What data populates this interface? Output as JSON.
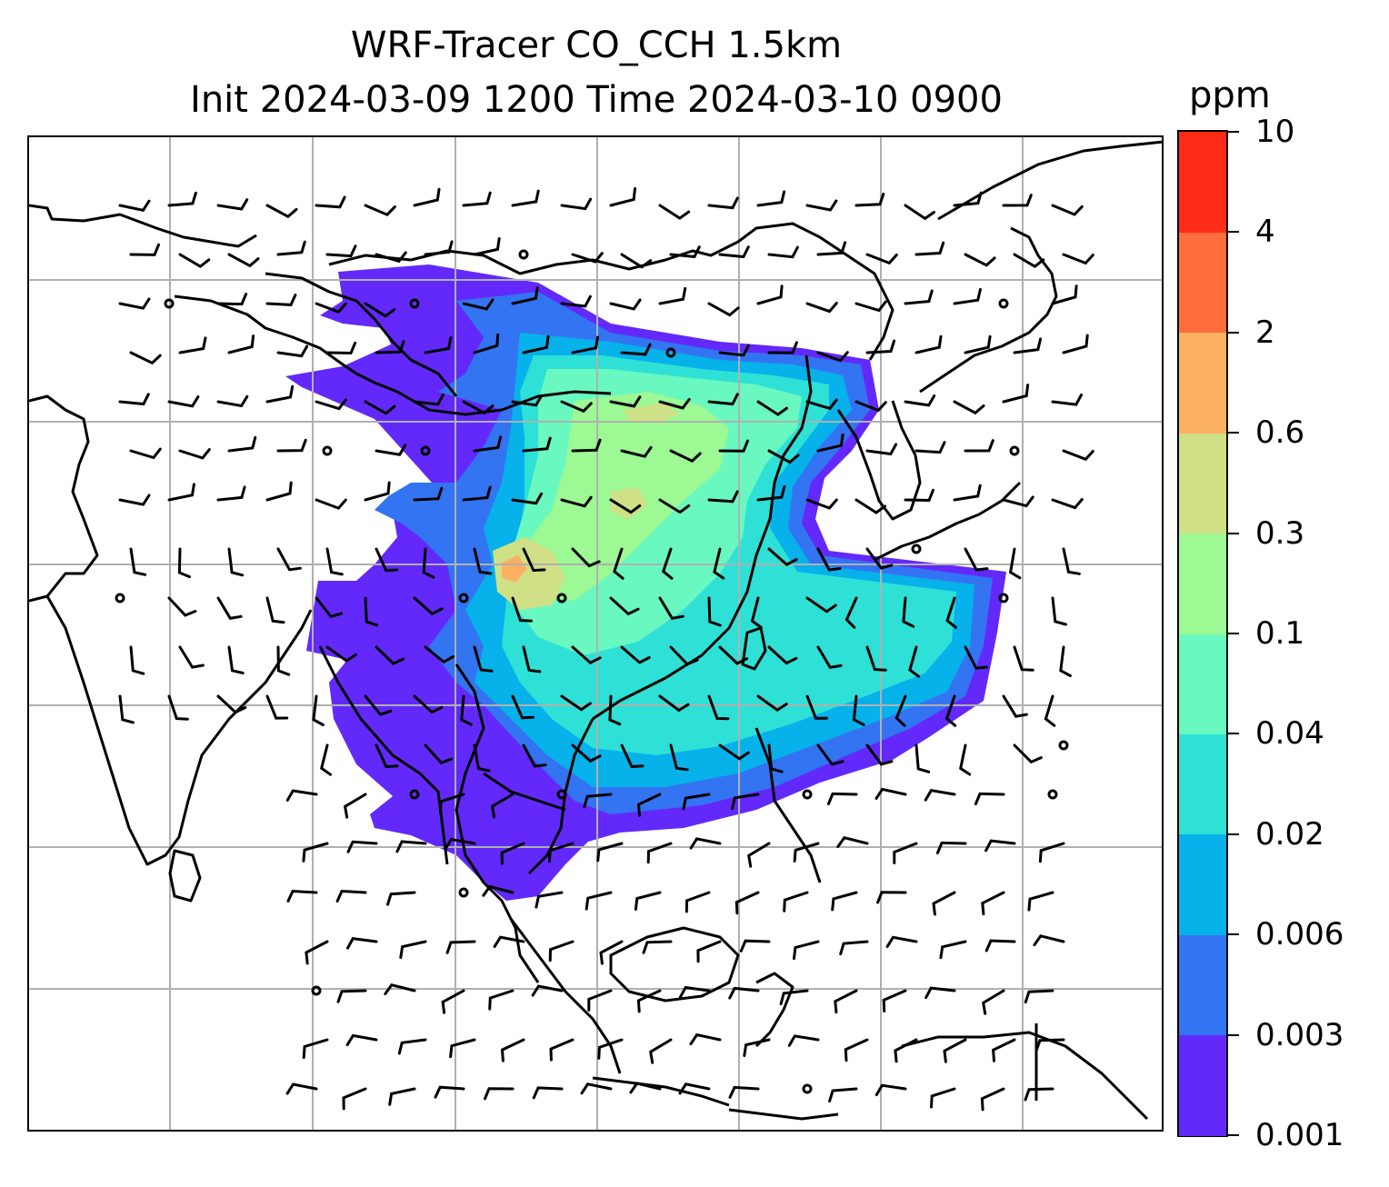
{
  "title": {
    "line1": "WRF-Tracer CO_CCH 1.5km",
    "line2": "Init 2024-03-09 1200 Time 2024-03-10 0900"
  },
  "colorbar": {
    "unit": "ppm",
    "levels": [
      "0.001",
      "0.003",
      "0.006",
      "0.02",
      "0.04",
      "0.1",
      "0.3",
      "0.6",
      "2",
      "4",
      "10"
    ],
    "colors": [
      "#6229fa",
      "#3374f2",
      "#07b1ea",
      "#2fe0d6",
      "#69f8c0",
      "#9cf993",
      "#d0e087",
      "#fcb061",
      "#fe6d3c",
      "#fe2b17"
    ]
  },
  "map": {
    "gridlines": true,
    "grid_color": "#b0b0b0",
    "coastline_color": "#000000",
    "wind_barbs": true
  }
}
